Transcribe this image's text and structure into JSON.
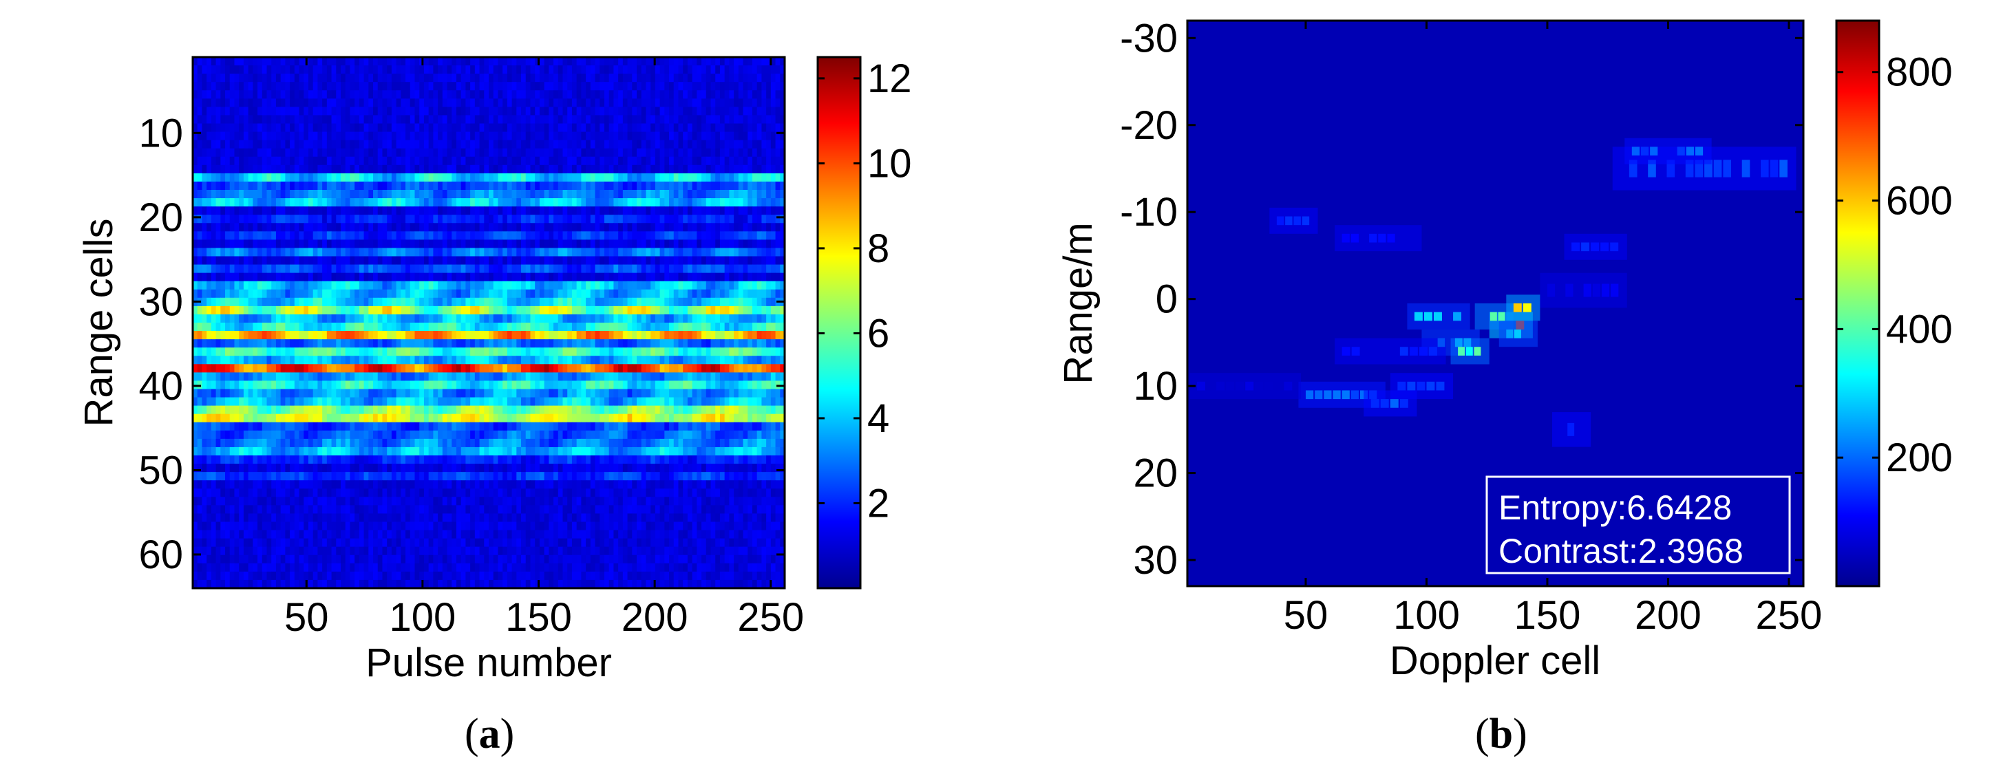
{
  "panels": {
    "a": {
      "label_open": "(",
      "label_letter": "a",
      "label_close": ")"
    },
    "b": {
      "label_open": "(",
      "label_letter": "b",
      "label_close": ")"
    }
  },
  "chart_data": [
    {
      "type": "heatmap",
      "panel": "a",
      "xlabel": "Pulse number",
      "ylabel": "Range cells",
      "xlim": [
        1,
        256
      ],
      "ylim": [
        1,
        64
      ],
      "y_reversed": true,
      "xticks": [
        50,
        100,
        150,
        200,
        250
      ],
      "yticks": [
        10,
        20,
        30,
        40,
        50,
        60
      ],
      "colorbar": {
        "min": 0,
        "max": 12.5,
        "ticks": [
          2,
          4,
          6,
          8,
          10,
          12
        ],
        "colormap": "jet"
      },
      "background_level": 1.3,
      "row_profile": [
        {
          "row": 15,
          "value": 4.5,
          "modulation": 0.6
        },
        {
          "row": 16,
          "value": 2.5,
          "modulation": 0.5
        },
        {
          "row": 17,
          "value": 3.2,
          "modulation": 0.5
        },
        {
          "row": 18,
          "value": 4.2,
          "modulation": 0.6
        },
        {
          "row": 20,
          "value": 2.0,
          "modulation": 0.5
        },
        {
          "row": 22,
          "value": 2.2,
          "modulation": 0.6
        },
        {
          "row": 24,
          "value": 3.0,
          "modulation": 0.6
        },
        {
          "row": 26,
          "value": 2.5,
          "modulation": 0.6
        },
        {
          "row": 28,
          "value": 4.2,
          "modulation": 0.6
        },
        {
          "row": 29,
          "value": 3.8,
          "modulation": 0.6
        },
        {
          "row": 30,
          "value": 4.5,
          "modulation": 0.6
        },
        {
          "row": 31,
          "value": 7.0,
          "modulation": 0.6
        },
        {
          "row": 32,
          "value": 4.0,
          "modulation": 0.6
        },
        {
          "row": 33,
          "value": 5.0,
          "modulation": 0.5
        },
        {
          "row": 34,
          "value": 9.0,
          "modulation": 0.4
        },
        {
          "row": 35,
          "value": 3.0,
          "modulation": 0.5
        },
        {
          "row": 36,
          "value": 5.5,
          "modulation": 0.4
        },
        {
          "row": 37,
          "value": 4.0,
          "modulation": 0.5
        },
        {
          "row": 38,
          "value": 10.5,
          "modulation": 0.35
        },
        {
          "row": 39,
          "value": 3.5,
          "modulation": 0.5
        },
        {
          "row": 40,
          "value": 5.0,
          "modulation": 0.5
        },
        {
          "row": 41,
          "value": 3.5,
          "modulation": 0.6
        },
        {
          "row": 42,
          "value": 4.2,
          "modulation": 0.6
        },
        {
          "row": 43,
          "value": 6.5,
          "modulation": 0.4
        },
        {
          "row": 44,
          "value": 7.5,
          "modulation": 0.35
        },
        {
          "row": 45,
          "value": 2.5,
          "modulation": 0.6
        },
        {
          "row": 46,
          "value": 2.8,
          "modulation": 0.6
        },
        {
          "row": 47,
          "value": 3.2,
          "modulation": 0.6
        },
        {
          "row": 48,
          "value": 4.0,
          "modulation": 0.5
        },
        {
          "row": 49,
          "value": 2.0,
          "modulation": 0.5
        },
        {
          "row": 51,
          "value": 2.2,
          "modulation": 0.5
        }
      ]
    },
    {
      "type": "heatmap",
      "panel": "b",
      "xlabel": "Doppler cell",
      "ylabel": "Range/m",
      "xlim": [
        1,
        256
      ],
      "ylim": [
        -32,
        33
      ],
      "y_reversed": true,
      "xticks": [
        50,
        100,
        150,
        200,
        250
      ],
      "yticks": [
        -30,
        -20,
        -10,
        0,
        10,
        20,
        30
      ],
      "ytick_labels": [
        "-30",
        "-20",
        "-10",
        "0",
        "10",
        "20",
        "30"
      ],
      "colorbar": {
        "min": 0,
        "max": 880,
        "ticks": [
          200,
          400,
          600,
          800
        ],
        "colormap": "jet"
      },
      "background_level": 45,
      "scatterers": [
        {
          "x": 215,
          "y": -15,
          "w": 70,
          "h": 4,
          "value": 190
        },
        {
          "x": 200,
          "y": -17,
          "w": 30,
          "h": 2,
          "value": 210
        },
        {
          "x": 45,
          "y": -9,
          "w": 14,
          "h": 2,
          "value": 170
        },
        {
          "x": 80,
          "y": -7,
          "w": 30,
          "h": 2,
          "value": 150
        },
        {
          "x": 170,
          "y": -6,
          "w": 20,
          "h": 2,
          "value": 160
        },
        {
          "x": 135,
          "y": 3,
          "w": 12,
          "h": 2,
          "value": 700
        },
        {
          "x": 128,
          "y": 2,
          "w": 10,
          "h": 2,
          "value": 500
        },
        {
          "x": 140,
          "y": 1,
          "w": 8,
          "h": 2,
          "value": 600
        },
        {
          "x": 138,
          "y": 4,
          "w": 10,
          "h": 2,
          "value": 350
        },
        {
          "x": 105,
          "y": 2,
          "w": 20,
          "h": 2,
          "value": 300
        },
        {
          "x": 110,
          "y": 5,
          "w": 18,
          "h": 2,
          "value": 330
        },
        {
          "x": 118,
          "y": 6,
          "w": 10,
          "h": 2,
          "value": 450
        },
        {
          "x": 85,
          "y": 6,
          "w": 40,
          "h": 2,
          "value": 150
        },
        {
          "x": 98,
          "y": 10,
          "w": 20,
          "h": 2,
          "value": 190
        },
        {
          "x": 65,
          "y": 11,
          "w": 30,
          "h": 2,
          "value": 230
        },
        {
          "x": 85,
          "y": 12,
          "w": 16,
          "h": 2,
          "value": 200
        },
        {
          "x": 25,
          "y": 10,
          "w": 40,
          "h": 2,
          "value": 90
        },
        {
          "x": 160,
          "y": 15,
          "w": 10,
          "h": 3,
          "value": 190
        },
        {
          "x": 165,
          "y": -1,
          "w": 30,
          "h": 3,
          "value": 110
        }
      ],
      "annotation": {
        "line1": "Entropy:6.6428",
        "line2": "Contrast:2.3968"
      }
    }
  ]
}
